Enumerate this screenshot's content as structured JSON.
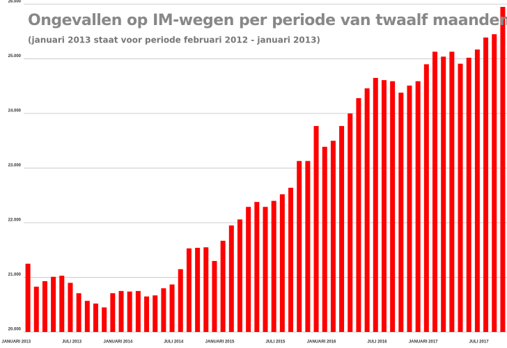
{
  "chart_data": {
    "type": "bar",
    "title": "Ongevallen op IM-wegen per periode van twaalf maanden",
    "subtitle": "(januari 2013 staat voor periode februari 2012 - januari 2013)",
    "color": "#ff0000",
    "categories": [
      "JANUARI 2013",
      null,
      null,
      null,
      null,
      null,
      "JULI 2013",
      null,
      null,
      null,
      null,
      null,
      "JANUARI 2014",
      null,
      null,
      null,
      null,
      null,
      "JULI 2014",
      null,
      null,
      null,
      null,
      null,
      "JANUARI 2015",
      null,
      null,
      null,
      null,
      null,
      "JULI 2015",
      null,
      null,
      null,
      null,
      null,
      "JANUARI 2016",
      null,
      null,
      null,
      null,
      null,
      "JULI 2016",
      null,
      null,
      null,
      null,
      null,
      "JANUARI 2017",
      null,
      null,
      null,
      null,
      null,
      "JULI 2017",
      null,
      null
    ],
    "values": [
      21250,
      20830,
      20930,
      21010,
      21030,
      20900,
      20710,
      20570,
      20520,
      20450,
      20710,
      20750,
      20740,
      20750,
      20650,
      20670,
      20800,
      20870,
      21150,
      21530,
      21540,
      21550,
      21300,
      21670,
      21950,
      22060,
      22290,
      22380,
      22290,
      22400,
      22520,
      22640,
      23130,
      23130,
      23770,
      23390,
      23500,
      23770,
      24000,
      24280,
      24460,
      24650,
      24610,
      24590,
      24380,
      24510,
      24590,
      24900,
      25130,
      25040,
      25130,
      24910,
      25020,
      25170,
      25390,
      25450,
      25950
    ],
    "ylim": [
      20000,
      26000
    ],
    "yticks": [
      {
        "value": 20000,
        "label": "20.000"
      },
      {
        "value": 21000,
        "label": "21.000"
      },
      {
        "value": 22000,
        "label": "22.000"
      },
      {
        "value": 23000,
        "label": "23.000"
      },
      {
        "value": 24000,
        "label": "24.000"
      },
      {
        "value": 25000,
        "label": "25.000"
      },
      {
        "value": 26000,
        "label": "26.000"
      }
    ],
    "grid": true
  }
}
